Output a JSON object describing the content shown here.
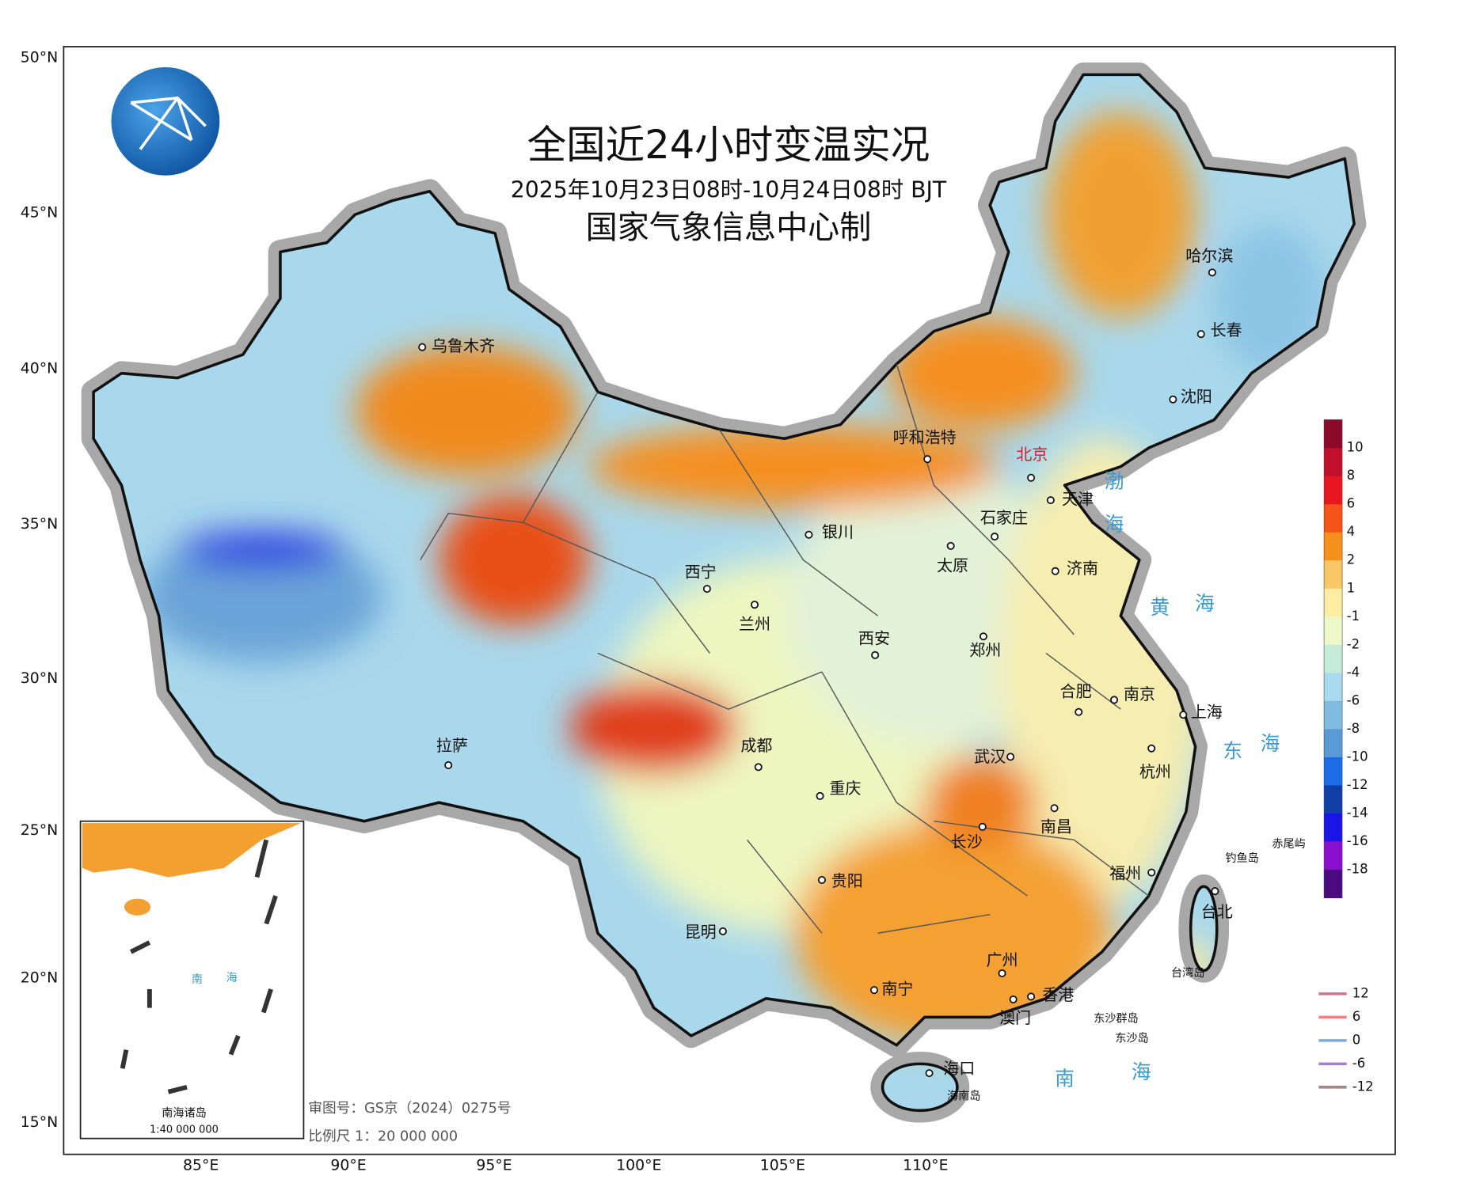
{
  "header": {
    "title": "全国近24小时变温实况",
    "subtitle": "2025年10月23日08时-10月24日08时 BJT",
    "producer": "国家气象信息中心制"
  },
  "latitude_labels": [
    "50°N",
    "45°N",
    "40°N",
    "35°N",
    "30°N",
    "25°N",
    "20°N",
    "15°N"
  ],
  "longitude_labels": [
    "85°E",
    "90°E",
    "95°E",
    "100°E",
    "105°E",
    "110°E"
  ],
  "cities": [
    "乌鲁木齐",
    "呼和浩特",
    "北京",
    "天津",
    "石家庄",
    "太原",
    "济南",
    "银川",
    "西宁",
    "兰州",
    "西安",
    "郑州",
    "合肥",
    "南京",
    "上海",
    "拉萨",
    "成都",
    "重庆",
    "武汉",
    "杭州",
    "长沙",
    "南昌",
    "贵阳",
    "福州",
    "昆明",
    "台北",
    "南宁",
    "广州",
    "香港",
    "澳门",
    "海口",
    "哈尔滨",
    "长春",
    "沈阳"
  ],
  "water_labels": [
    "渤",
    "海",
    "黄",
    "海",
    "东",
    "海",
    "南",
    "海"
  ],
  "islands": [
    "赤尾屿",
    "钓鱼岛",
    "台湾岛",
    "东沙群岛",
    "东沙岛",
    "海南岛"
  ],
  "inset": {
    "name": "南海诸岛",
    "scale": "1:40 000 000",
    "water_labels": [
      "南",
      "海"
    ]
  },
  "color_legend": {
    "values": [
      10,
      8,
      6,
      4,
      2,
      1,
      -1,
      -2,
      -4,
      -6,
      -8,
      -10,
      -12,
      -14,
      -16,
      -18
    ]
  },
  "line_legend": {
    "values": [
      12,
      6,
      0,
      -6,
      -12
    ]
  },
  "footer": {
    "approval": "审图号：GS京（2024）0275号",
    "scale": "比例尺 1：20 000 000"
  }
}
